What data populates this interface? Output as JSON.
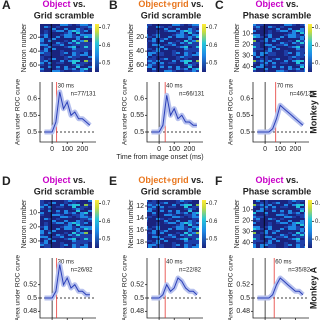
{
  "figure": {
    "x_label": "Time from image onset (ms)",
    "heatmap_y_label": "Neuron number",
    "curve_y_label": "Area under ROC curve",
    "colorbar_label": "Area under ROC curve",
    "colorbar_ticks": [
      0.5,
      0.6,
      0.7
    ],
    "colorbar_lim": [
      0.45,
      0.72
    ],
    "time_lim": [
      -80,
      290
    ],
    "time_ticks": [
      0,
      100,
      200
    ],
    "chance": 0.5,
    "rows": [
      "Monkey M",
      "Monkey A"
    ],
    "panels": [
      {
        "letter": "A",
        "title_object": "Object",
        "object_color": "#c800c8",
        "title_vs": "vs.",
        "title_control": "Grid scramble",
        "control_color": "#1f4fd8",
        "neuron_lim": [
          1,
          70
        ],
        "neuron_ticks": [
          20,
          40,
          60
        ],
        "latency": {
          "value": 30,
          "label": "30 ms"
        },
        "n": "n=77/131",
        "ylim": [
          0.47,
          0.65
        ],
        "yticks": [
          0.5,
          0.55,
          0.6
        ],
        "time": [
          -50,
          -25,
          0,
          25,
          50,
          75,
          100,
          125,
          150,
          175,
          200,
          225,
          250
        ],
        "auc": [
          0.5,
          0.5,
          0.5,
          0.53,
          0.62,
          0.57,
          0.59,
          0.55,
          0.56,
          0.54,
          0.54,
          0.53,
          0.52
        ]
      },
      {
        "letter": "B",
        "title_object": "Object+grid",
        "object_color": "#e8761e",
        "title_vs": "vs.",
        "title_control": "Grid scramble",
        "control_color": "#1f4fd8",
        "neuron_lim": [
          1,
          70
        ],
        "neuron_ticks": [
          20,
          40,
          60
        ],
        "latency": {
          "value": 40,
          "label": "40 ms"
        },
        "n": "n=66/131",
        "ylim": [
          0.47,
          0.65
        ],
        "yticks": [
          0.5,
          0.55,
          0.6
        ],
        "time": [
          -50,
          -25,
          0,
          25,
          50,
          75,
          100,
          125,
          150,
          175,
          200,
          225,
          250
        ],
        "auc": [
          0.5,
          0.5,
          0.5,
          0.52,
          0.61,
          0.55,
          0.57,
          0.54,
          0.55,
          0.53,
          0.53,
          0.52,
          0.52
        ]
      },
      {
        "letter": "C",
        "title_object": "Object",
        "object_color": "#c800c8",
        "title_vs": "vs.",
        "title_control": "Phase scramble",
        "control_color": "#10a0a0",
        "neuron_lim": [
          1,
          45
        ],
        "neuron_ticks": [
          10,
          20,
          30,
          40
        ],
        "latency": {
          "value": 70,
          "label": "70 ms"
        },
        "n": "n=46/131",
        "ylim": [
          0.47,
          0.65
        ],
        "yticks": [
          0.5,
          0.55,
          0.6
        ],
        "time": [
          -50,
          -25,
          0,
          25,
          50,
          75,
          100,
          125,
          150,
          175,
          200,
          225,
          250
        ],
        "auc": [
          0.5,
          0.5,
          0.5,
          0.5,
          0.51,
          0.54,
          0.58,
          0.57,
          0.56,
          0.55,
          0.54,
          0.53,
          0.52
        ]
      },
      {
        "letter": "D",
        "title_object": "Object",
        "object_color": "#c800c8",
        "title_vs": "vs.",
        "title_control": "Grid scramble",
        "control_color": "#1f4fd8",
        "neuron_lim": [
          1,
          35
        ],
        "neuron_ticks": [
          10,
          20,
          30
        ],
        "latency": {
          "value": 30,
          "label": "30 ms"
        },
        "n": "n=26/82",
        "ylim": [
          0.47,
          0.56
        ],
        "yticks": [
          0.48,
          0.5,
          0.52
        ],
        "time": [
          -50,
          -25,
          0,
          25,
          50,
          75,
          100,
          125,
          150,
          175,
          200,
          225,
          250
        ],
        "auc": [
          0.5,
          0.5,
          0.5,
          0.51,
          0.55,
          0.52,
          0.53,
          0.515,
          0.52,
          0.51,
          0.51,
          0.505,
          0.505
        ]
      },
      {
        "letter": "E",
        "title_object": "Object+grid",
        "object_color": "#e8761e",
        "title_vs": "vs.",
        "title_control": "Grid scramble",
        "control_color": "#1f4fd8",
        "neuron_lim": [
          11,
          19
        ],
        "neuron_ticks": [
          12,
          14,
          16,
          18
        ],
        "latency": {
          "value": 40,
          "label": "40 ms"
        },
        "n": "n=22/82",
        "ylim": [
          0.47,
          0.56
        ],
        "yticks": [
          0.48,
          0.5,
          0.52
        ],
        "time": [
          -50,
          -25,
          0,
          25,
          50,
          75,
          100,
          125,
          150,
          175,
          200,
          225,
          250
        ],
        "auc": [
          0.5,
          0.5,
          0.5,
          0.505,
          0.52,
          0.51,
          0.515,
          0.53,
          0.525,
          0.515,
          0.51,
          0.51,
          0.505
        ]
      },
      {
        "letter": "F",
        "title_object": "Object",
        "object_color": "#c800c8",
        "title_vs": "vs.",
        "title_control": "Phase scramble",
        "control_color": "#10a0a0",
        "neuron_lim": [
          1,
          45
        ],
        "neuron_ticks": [
          10,
          20,
          30,
          40
        ],
        "latency": {
          "value": 60,
          "label": "60 ms"
        },
        "n": "n=35/82",
        "ylim": [
          0.47,
          0.56
        ],
        "yticks": [
          0.48,
          0.5,
          0.52
        ],
        "time": [
          -50,
          -25,
          0,
          25,
          50,
          75,
          100,
          125,
          150,
          175,
          200,
          225,
          250
        ],
        "auc": [
          0.5,
          0.5,
          0.5,
          0.5,
          0.505,
          0.52,
          0.53,
          0.525,
          0.52,
          0.515,
          0.51,
          0.51,
          0.505
        ]
      }
    ]
  }
}
